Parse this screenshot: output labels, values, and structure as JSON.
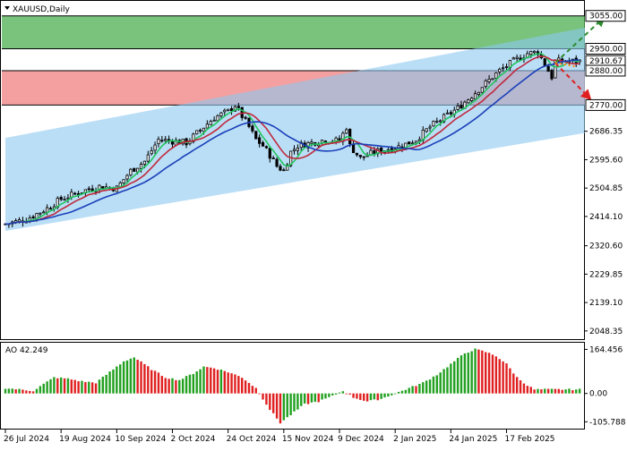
{
  "chart_data": {
    "type": "candlestick",
    "symbol_label": "XAUUSD,Daily",
    "oscillator_label": "AO 42.249",
    "price_axis": {
      "ylim": [
        2025.0,
        3100.0
      ],
      "ticks": [
        "3055.00",
        "2950.00",
        "2910.67",
        "2880.00",
        "2770.00",
        "2686.35",
        "2595.60",
        "2504.85",
        "2414.10",
        "2320.60",
        "2229.85",
        "2139.10",
        "2048.35"
      ]
    },
    "ao_axis": {
      "ylim": [
        -128.0,
        186.0
      ],
      "ticks": [
        "164.456",
        "0.00",
        "-105.788"
      ]
    },
    "x_tick_labels": [
      "26 Jul 2024",
      "19 Aug 2024",
      "10 Sep 2024",
      "2 Oct 2024",
      "24 Oct 2024",
      "15 Nov 2024",
      "9 Dec 2024",
      "2 Jan 2025",
      "24 Jan 2025",
      "17 Feb 2025"
    ],
    "x_tick_index": [
      0,
      16,
      32,
      48,
      64,
      80,
      96,
      112,
      128,
      144
    ],
    "num_bars": 166,
    "zones": {
      "green": {
        "from": 2950.0,
        "to": 3055.0,
        "color": "#4caf50"
      },
      "red": {
        "from": 2770.0,
        "to": 2880.0,
        "color": "#f08080"
      }
    },
    "channel": {
      "upper": [
        {
          "i": 0,
          "y": 2665.0
        },
        {
          "i": 182,
          "y": 3050.0
        }
      ],
      "lower": [
        {
          "i": 0,
          "y": 2368.0
        },
        {
          "i": 182,
          "y": 2710.0
        }
      ],
      "color": "#8cc8f0"
    },
    "price_labels": [
      {
        "text": "3055.00",
        "value": 3055.0,
        "bg": "#ffffff",
        "fg": "#000000"
      },
      {
        "text": "2950.00",
        "value": 2950.0,
        "bg": "#ffffff",
        "fg": "#000000"
      },
      {
        "text": "2910.67",
        "value": 2910.67,
        "bg": "#ffffff",
        "fg": "#000000"
      },
      {
        "text": "2880.00",
        "value": 2880.0,
        "bg": "#ffffff",
        "fg": "#000000"
      },
      {
        "text": "2770.00",
        "value": 2770.0,
        "bg": "#ffffff",
        "fg": "#000000"
      }
    ],
    "forecast": {
      "start": {
        "i": 158,
        "y": 2905.0
      },
      "up_end": {
        "i": 172,
        "y": 3050.0
      },
      "down_end": {
        "i": 168,
        "y": 2790.0
      },
      "up_color": "#2e8b2e",
      "down_color": "#e02020",
      "dot_color": "#ff8c00"
    },
    "colors": {
      "bull": "#ffffff",
      "bear": "#000000",
      "ma_fast": "#22c55e",
      "ma_mid": "#c0283c",
      "ma_slow": "#1a3fb8",
      "ao_up": "#22a020",
      "ao_down": "#e02020"
    },
    "close_path": [
      [
        0,
        2390
      ],
      [
        6,
        2405
      ],
      [
        12,
        2440
      ],
      [
        16,
        2470
      ],
      [
        22,
        2495
      ],
      [
        27,
        2510
      ],
      [
        32,
        2505
      ],
      [
        36,
        2560
      ],
      [
        40,
        2590
      ],
      [
        44,
        2660
      ],
      [
        48,
        2655
      ],
      [
        52,
        2650
      ],
      [
        56,
        2690
      ],
      [
        60,
        2730
      ],
      [
        64,
        2750
      ],
      [
        66,
        2770
      ],
      [
        68,
        2735
      ],
      [
        70,
        2700
      ],
      [
        72,
        2660
      ],
      [
        74,
        2640
      ],
      [
        76,
        2610
      ],
      [
        78,
        2575
      ],
      [
        80,
        2560
      ],
      [
        82,
        2620
      ],
      [
        84,
        2640
      ],
      [
        88,
        2650
      ],
      [
        92,
        2660
      ],
      [
        96,
        2655
      ],
      [
        98,
        2700
      ],
      [
        99,
        2640
      ],
      [
        102,
        2600
      ],
      [
        106,
        2620
      ],
      [
        110,
        2630
      ],
      [
        114,
        2640
      ],
      [
        118,
        2660
      ],
      [
        122,
        2700
      ],
      [
        126,
        2730
      ],
      [
        130,
        2760
      ],
      [
        134,
        2800
      ],
      [
        138,
        2840
      ],
      [
        142,
        2880
      ],
      [
        146,
        2910
      ],
      [
        150,
        2935
      ],
      [
        153,
        2940
      ],
      [
        155,
        2900
      ],
      [
        157,
        2860
      ],
      [
        158,
        2910
      ]
    ],
    "ao_path": [
      [
        0,
        20
      ],
      [
        4,
        15
      ],
      [
        8,
        10
      ],
      [
        14,
        60
      ],
      [
        18,
        55
      ],
      [
        22,
        45
      ],
      [
        26,
        40
      ],
      [
        30,
        80
      ],
      [
        34,
        120
      ],
      [
        37,
        135
      ],
      [
        42,
        90
      ],
      [
        46,
        60
      ],
      [
        50,
        50
      ],
      [
        54,
        75
      ],
      [
        57,
        100
      ],
      [
        60,
        95
      ],
      [
        64,
        80
      ],
      [
        68,
        60
      ],
      [
        72,
        20
      ],
      [
        76,
        -60
      ],
      [
        79,
        -110
      ],
      [
        82,
        -80
      ],
      [
        86,
        -40
      ],
      [
        90,
        -30
      ],
      [
        94,
        -10
      ],
      [
        97,
        10
      ],
      [
        100,
        -15
      ],
      [
        104,
        -30
      ],
      [
        108,
        -20
      ],
      [
        112,
        0
      ],
      [
        116,
        20
      ],
      [
        120,
        40
      ],
      [
        124,
        70
      ],
      [
        128,
        110
      ],
      [
        132,
        150
      ],
      [
        135,
        165
      ],
      [
        138,
        155
      ],
      [
        141,
        140
      ],
      [
        144,
        110
      ],
      [
        147,
        60
      ],
      [
        150,
        30
      ],
      [
        152,
        15
      ]
    ]
  }
}
